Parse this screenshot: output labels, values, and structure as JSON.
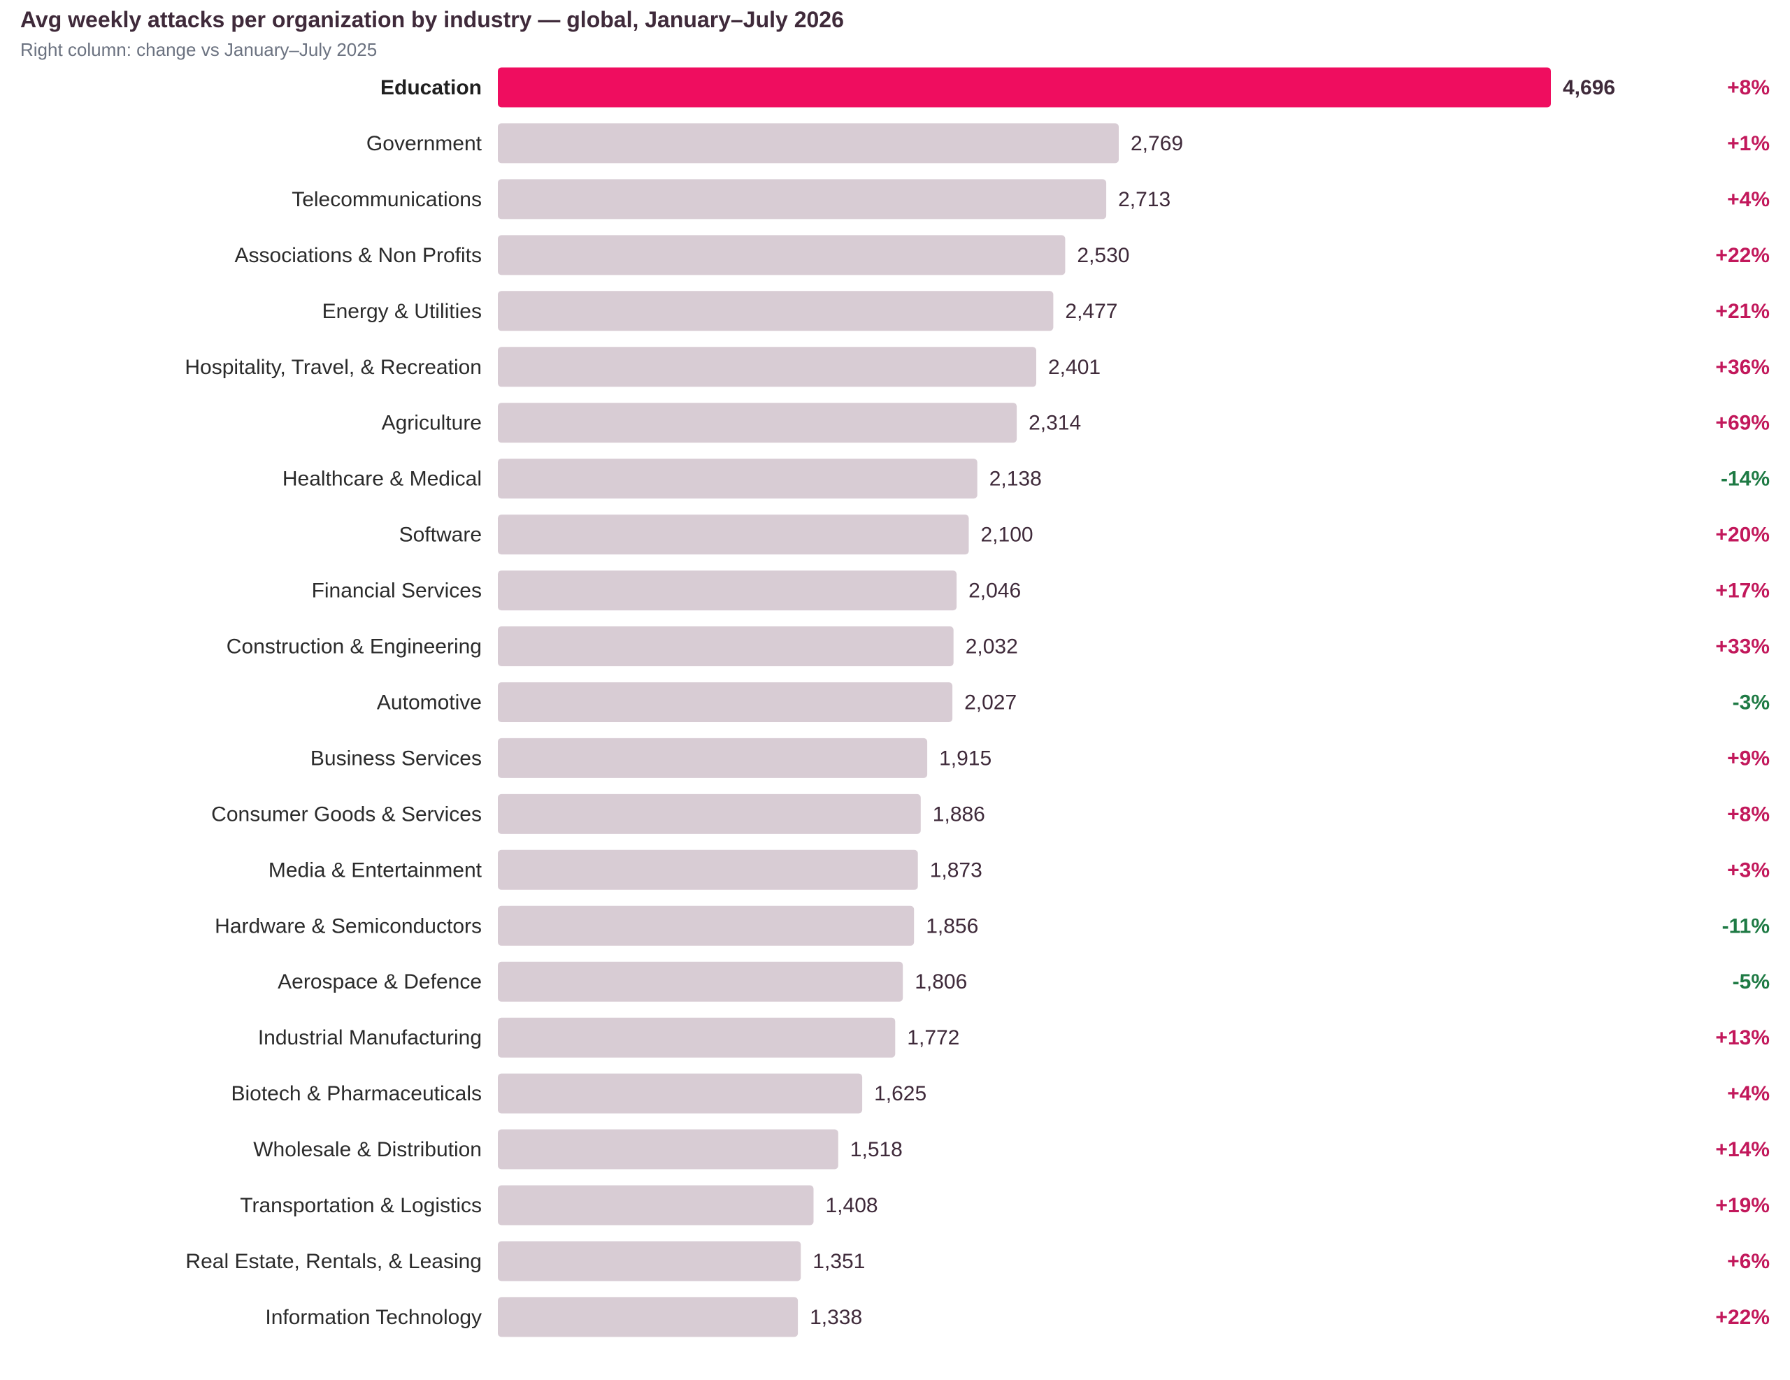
{
  "chart_data": {
    "type": "bar",
    "orientation": "horizontal",
    "title": "Avg weekly attacks per organization by industry — global, January–July 2026",
    "subtitle": "Right column: change vs January–July 2025",
    "highlight_category": "Education",
    "colors": {
      "highlight_bar": "#ef0d5f",
      "bar": "#d8ccd4",
      "positive_change": "#c2185b",
      "negative_change": "#1e7a44",
      "title": "#3f2a3a",
      "subtitle": "#6b7280"
    },
    "xlim": [
      0,
      4696
    ],
    "grid": false,
    "categories": [
      "Education",
      "Government",
      "Telecommunications",
      "Associations & Non Profits",
      "Energy & Utilities",
      "Hospitality, Travel, & Recreation",
      "Agriculture",
      "Healthcare & Medical",
      "Software",
      "Financial Services",
      "Construction & Engineering",
      "Automotive",
      "Business Services",
      "Consumer Goods & Services",
      "Media & Entertainment",
      "Hardware & Semiconductors",
      "Aerospace & Defence",
      "Industrial Manufacturing",
      "Biotech & Pharmaceuticals",
      "Wholesale & Distribution",
      "Transportation & Logistics",
      "Real Estate, Rentals, & Leasing",
      "Information Technology"
    ],
    "values": [
      4696,
      2769,
      2713,
      2530,
      2477,
      2401,
      2314,
      2138,
      2100,
      2046,
      2032,
      2027,
      1915,
      1886,
      1873,
      1856,
      1806,
      1772,
      1625,
      1518,
      1408,
      1351,
      1338
    ],
    "value_labels": [
      "4,696",
      "2,769",
      "2,713",
      "2,530",
      "2,477",
      "2,401",
      "2,314",
      "2,138",
      "2,100",
      "2,046",
      "2,032",
      "2,027",
      "1,915",
      "1,886",
      "1,873",
      "1,856",
      "1,806",
      "1,772",
      "1,625",
      "1,518",
      "1,408",
      "1,351",
      "1,338"
    ],
    "changes": [
      "+8%",
      "+1%",
      "+4%",
      "+22%",
      "+21%",
      "+36%",
      "+69%",
      "-14%",
      "+20%",
      "+17%",
      "+33%",
      "-3%",
      "+9%",
      "+8%",
      "+3%",
      "-11%",
      "-5%",
      "+13%",
      "+4%",
      "+14%",
      "+19%",
      "+6%",
      "+22%"
    ]
  }
}
